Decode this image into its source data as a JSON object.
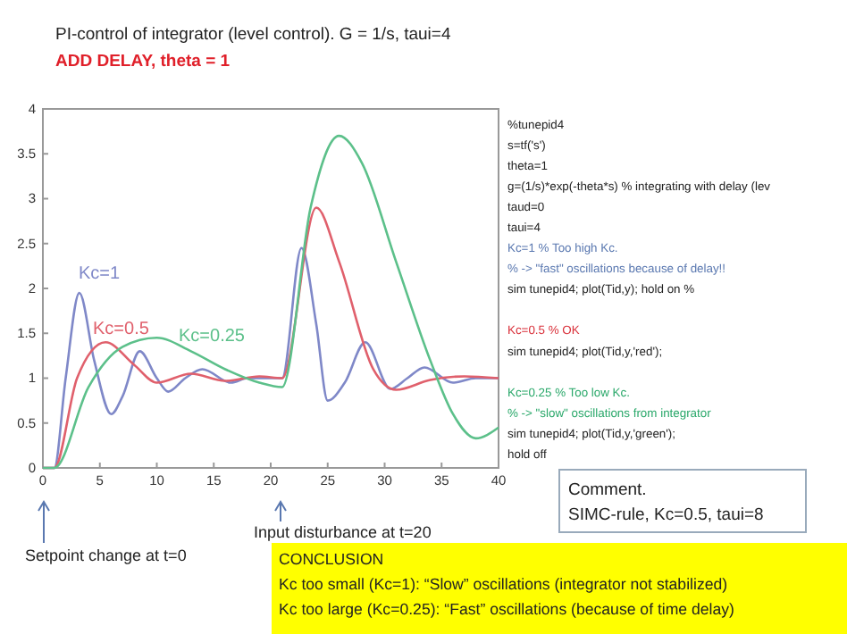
{
  "chart_data": {
    "type": "line",
    "title": "PI-control of integrator (level control). G = 1/s, taui=4",
    "subtitle": "ADD DELAY, theta = 1",
    "xlim": [
      0,
      40
    ],
    "xticks": [
      0,
      5,
      10,
      15,
      20,
      25,
      30,
      35,
      40
    ],
    "ylim": [
      0,
      4
    ],
    "yticks": [
      0,
      0.5,
      1,
      1.5,
      2,
      2.5,
      3,
      3.5,
      4
    ],
    "grid": false,
    "series": [
      {
        "name": "Kc=1",
        "color": "#7f88c8",
        "x": [
          0,
          1,
          2,
          3.2,
          4.5,
          6,
          7,
          8.5,
          10,
          11,
          12.5,
          14,
          16.5,
          18,
          21,
          22.7,
          24,
          25,
          26.5,
          28.3,
          30.5,
          32,
          33.5,
          36,
          38,
          40
        ],
        "values": [
          0,
          0,
          1.0,
          1.95,
          1.2,
          0.6,
          0.8,
          1.3,
          1.0,
          0.85,
          1.0,
          1.1,
          0.95,
          1.0,
          1.0,
          2.45,
          1.6,
          0.75,
          0.95,
          1.4,
          0.88,
          1.0,
          1.12,
          0.95,
          1.0,
          1.0
        ]
      },
      {
        "name": "Kc=0.5",
        "color": "#e0606c",
        "x": [
          0,
          1,
          3,
          5.5,
          8,
          10,
          13,
          16,
          19,
          21,
          24,
          26,
          29,
          31,
          34,
          37,
          40
        ],
        "values": [
          0,
          0,
          1.0,
          1.4,
          1.15,
          0.95,
          1.05,
          0.97,
          1.02,
          1.0,
          2.9,
          2.3,
          1.1,
          0.87,
          0.98,
          1.02,
          1.0
        ]
      },
      {
        "name": "Kc=0.25",
        "color": "#5cc08a",
        "x": [
          0,
          1,
          4,
          7,
          10,
          13,
          16,
          19,
          21,
          23.5,
          26,
          28,
          31,
          34,
          36,
          38,
          40
        ],
        "values": [
          0,
          0,
          0.9,
          1.35,
          1.45,
          1.3,
          1.1,
          0.95,
          0.9,
          2.9,
          3.7,
          3.4,
          2.3,
          1.2,
          0.6,
          0.33,
          0.45
        ]
      }
    ],
    "annotations": [
      "%tunepid4\ns=tf('s')\ntheta=1\ng=(1/s)*exp(-theta*s) % integrating with delay (lev\ntaud=0\ntaui=4",
      "Kc=1 % Too high Kc.\n% -> \"fast\" oscillations because of delay!!",
      "sim tunepid4; plot(Tid,y); hold on %",
      "Kc=0.5 % OK",
      "sim tunepid4; plot(Tid,y,'red');",
      "Kc=0.25 % Too low Kc.\n% -> \"slow\" oscillations from integrator",
      "sim tunepid4; plot(Tid,y,'green');\nhold off",
      "Comment.\nSIMC-rule, Kc=0.5, taui=8",
      "Setpoint change at t=0",
      "Input disturbance at t=20",
      "CONCLUSION\nKc too small (Kc=1): “Slow” oscillations (integrator not stabilized)\nKc too large (Kc=0.25): “Fast” oscillations (because of time delay)"
    ]
  }
}
